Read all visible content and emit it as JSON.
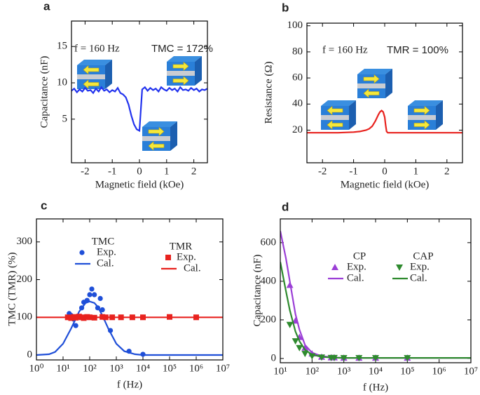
{
  "chart_data": [
    {
      "type": "line",
      "label": "a",
      "xlabel": "Magnetic field (kOe)",
      "ylabel": "Capacitance (nF)",
      "xlim": [
        -2.5,
        2.5
      ],
      "xticks": [
        -2,
        -1,
        0,
        1,
        2
      ],
      "ylim": [
        -1,
        18.5
      ],
      "yticks": [
        5,
        10,
        15
      ],
      "annotations": [
        {
          "text": "f = 160 Hz",
          "color": "#222222"
        },
        {
          "text": "TMC = 172%",
          "color": "#2233ee"
        }
      ],
      "series": [
        {
          "color": "#2233ee",
          "mode": "line",
          "x": [
            -2.5,
            -2.4,
            -2.3,
            -2.2,
            -2.1,
            -2.0,
            -1.9,
            -1.8,
            -1.7,
            -1.6,
            -1.5,
            -1.4,
            -1.3,
            -1.2,
            -1.1,
            -1.0,
            -0.9,
            -0.8,
            -0.7,
            -0.6,
            -0.5,
            -0.4,
            -0.3,
            -0.2,
            -0.1,
            0.0,
            0.1,
            0.2,
            0.3,
            0.4,
            0.5,
            0.6,
            0.7,
            0.8,
            0.9,
            1.0,
            1.1,
            1.2,
            1.3,
            1.4,
            1.5,
            1.6,
            1.7,
            1.8,
            1.9,
            2.0,
            2.1,
            2.2,
            2.3,
            2.4,
            2.5
          ],
          "values": [
            8.9,
            9.2,
            8.7,
            9.1,
            8.8,
            9.3,
            8.9,
            9.0,
            8.6,
            9.2,
            8.8,
            9.4,
            8.9,
            9.1,
            8.7,
            9.0,
            8.8,
            9.3,
            8.6,
            8.4,
            8.0,
            7.0,
            5.5,
            4.3,
            3.6,
            3.4,
            9.1,
            9.4,
            8.9,
            9.3,
            9.0,
            9.2,
            8.8,
            9.4,
            9.1,
            8.9,
            9.3,
            9.0,
            9.2,
            8.8,
            9.4,
            9.0,
            9.1,
            8.9,
            9.3,
            9.0,
            9.2,
            8.8,
            9.1,
            9.0,
            9.2
          ]
        }
      ]
    },
    {
      "type": "line",
      "label": "b",
      "xlabel": "Magnetic field (kOe)",
      "ylabel": "Resistance (Ω)",
      "xlim": [
        -2.5,
        2.5
      ],
      "xticks": [
        -2,
        -1,
        0,
        1,
        2
      ],
      "ylim": [
        -5,
        102
      ],
      "yticks": [
        20,
        40,
        60,
        80,
        100
      ],
      "annotations": [
        {
          "text": "f = 160 Hz",
          "color": "#222222"
        },
        {
          "text": "TMR = 100%",
          "color": "#e8221e"
        }
      ],
      "series": [
        {
          "color": "#e8221e",
          "mode": "line",
          "x": [
            -2.5,
            -2,
            -1.5,
            -1,
            -0.8,
            -0.6,
            -0.5,
            -0.4,
            -0.3,
            -0.2,
            -0.15,
            -0.1,
            -0.05,
            0,
            0.03,
            0.06,
            0.1,
            0.5,
            1,
            1.5,
            2,
            2.5
          ],
          "values": [
            18,
            18,
            18,
            18.5,
            19,
            20,
            21,
            23,
            27,
            32,
            34,
            35,
            34,
            30,
            24,
            19,
            18,
            18,
            18,
            18,
            18,
            18
          ]
        }
      ]
    },
    {
      "type": "line",
      "label": "c",
      "xlabel": "f (Hz)",
      "ylabel": "TMC (TMR) (%)",
      "xscale": "log",
      "xlim": [
        1,
        10000000
      ],
      "xticks": [
        {
          "value": 1,
          "label": "10⁰"
        },
        {
          "value": 10,
          "label": "10¹"
        },
        {
          "value": 100,
          "label": "10²"
        },
        {
          "value": 1000,
          "label": "10³"
        },
        {
          "value": 10000,
          "label": "10⁴"
        },
        {
          "value": 100000,
          "label": "10⁵"
        },
        {
          "value": 1000000,
          "label": "10⁶"
        },
        {
          "value": 10000000,
          "label": "10⁷"
        }
      ],
      "ylim": [
        -13,
        361
      ],
      "yticks": [
        0,
        100,
        200,
        300
      ],
      "legend_titles": [
        "TMC",
        "TMR"
      ],
      "series": [
        {
          "name": "Exp.",
          "color": "#1f4fd8",
          "mode": "markers",
          "marker": "circle",
          "x": [
            17,
            20,
            25,
            30,
            40,
            50,
            60,
            80,
            100,
            120,
            150,
            200,
            250,
            300,
            600,
            3000,
            10000
          ],
          "values": [
            110,
            105,
            95,
            78,
            100,
            125,
            140,
            145,
            160,
            175,
            160,
            125,
            150,
            120,
            65,
            10,
            2
          ]
        },
        {
          "name": "Cal.",
          "color": "#1f4fd8",
          "mode": "line",
          "x": [
            1,
            3,
            5,
            10,
            20,
            40,
            70,
            100,
            150,
            200,
            300,
            500,
            1000,
            2000,
            5000,
            10000,
            100000,
            10000000
          ],
          "values": [
            0,
            2,
            8,
            30,
            70,
            115,
            138,
            142,
            138,
            128,
            105,
            70,
            30,
            10,
            2,
            0,
            0,
            0
          ]
        },
        {
          "name": "Exp.",
          "color": "#e8221e",
          "mode": "markers",
          "marker": "square",
          "x": [
            15,
            20,
            25,
            30,
            40,
            50,
            60,
            80,
            100,
            150,
            300,
            400,
            700,
            1500,
            4000,
            10000,
            100000,
            1000000
          ],
          "values": [
            100,
            98,
            101,
            99,
            102,
            100,
            98,
            101,
            100,
            99,
            101,
            100,
            100,
            100,
            100,
            100,
            101,
            100
          ]
        },
        {
          "name": "Cal.",
          "color": "#e8221e",
          "mode": "line",
          "x": [
            1,
            10000000
          ],
          "values": [
            100,
            100
          ]
        }
      ]
    },
    {
      "type": "line",
      "label": "d",
      "xlabel": "f (Hz)",
      "ylabel": "Capacitance (nF)",
      "xscale": "log",
      "xlim": [
        10,
        10000000
      ],
      "xticks": [
        {
          "value": 10,
          "label": "10¹"
        },
        {
          "value": 100,
          "label": "10²"
        },
        {
          "value": 1000,
          "label": "10³"
        },
        {
          "value": 10000,
          "label": "10⁴"
        },
        {
          "value": 100000,
          "label": "10⁵"
        },
        {
          "value": 1000000,
          "label": "10⁶"
        },
        {
          "value": 10000000,
          "label": "10⁷"
        }
      ],
      "ylim": [
        -22,
        723
      ],
      "yticks": [
        0,
        200,
        400,
        600
      ],
      "legend_titles": [
        "CP",
        "CAP"
      ],
      "series": [
        {
          "name": "Exp.",
          "color": "#9b3fd6",
          "mode": "markers",
          "marker": "triangle-up",
          "x": [
            20,
            30,
            40,
            60,
            100,
            200,
            400,
            500,
            1000,
            3000,
            10000,
            100000
          ],
          "values": [
            380,
            195,
            110,
            55,
            25,
            8,
            5,
            5,
            3,
            3,
            3,
            3
          ]
        },
        {
          "name": "Cal.",
          "color": "#9b3fd6",
          "mode": "line",
          "x": [
            10,
            15,
            20,
            30,
            40,
            60,
            100,
            200,
            500,
            1000,
            10000,
            100000,
            10000000
          ],
          "values": [
            660,
            520,
            400,
            230,
            150,
            70,
            30,
            12,
            5,
            3,
            3,
            3,
            3
          ]
        },
        {
          "name": "Exp.",
          "color": "#2e8a2e",
          "mode": "markers",
          "marker": "triangle-down",
          "x": [
            20,
            30,
            40,
            60,
            100,
            200,
            400,
            500,
            1000,
            3000,
            10000,
            100000
          ],
          "values": [
            175,
            90,
            55,
            25,
            12,
            6,
            4,
            4,
            3,
            3,
            3,
            3
          ]
        },
        {
          "name": "Cal.",
          "color": "#2e8a2e",
          "mode": "line",
          "x": [
            10,
            15,
            20,
            30,
            40,
            60,
            100,
            200,
            500,
            1000,
            10000,
            100000,
            10000000
          ],
          "values": [
            500,
            350,
            250,
            140,
            90,
            45,
            20,
            8,
            4,
            3,
            3,
            3,
            3
          ]
        }
      ]
    }
  ]
}
